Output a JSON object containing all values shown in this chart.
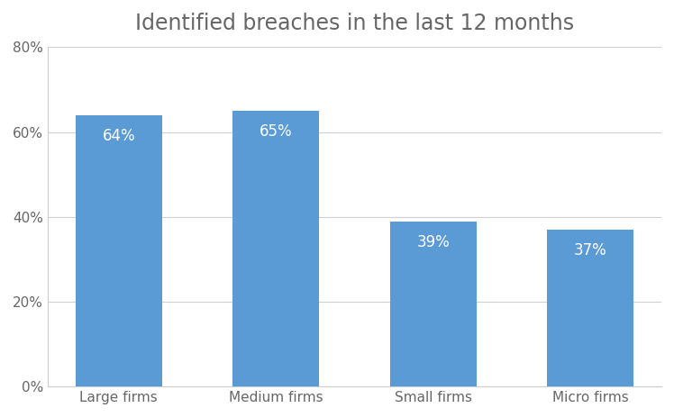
{
  "title": "Identified breaches in the last 12 months",
  "categories": [
    "Large firms",
    "Medium firms",
    "Small firms",
    "Micro firms"
  ],
  "values": [
    64,
    65,
    39,
    37
  ],
  "bar_color": "#5b9bd5",
  "label_color": "#ffffff",
  "label_fontsize": 12,
  "title_fontsize": 17,
  "tick_fontsize": 11,
  "ylim": [
    0,
    80
  ],
  "yticks": [
    0,
    20,
    40,
    60,
    80
  ],
  "background_color": "#ffffff",
  "grid_color": "#d0d0d0",
  "title_color": "#666666"
}
